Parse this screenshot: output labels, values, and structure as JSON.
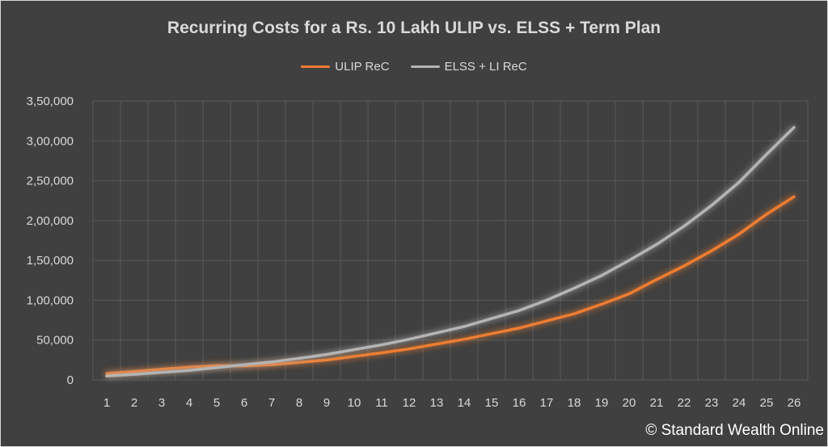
{
  "chart_data": {
    "type": "line",
    "title": "Recurring Costs for a Rs. 10 Lakh ULIP vs. ELSS + Term Plan",
    "xlabel": "",
    "ylabel": "",
    "x": [
      1,
      2,
      3,
      4,
      5,
      6,
      7,
      8,
      9,
      10,
      11,
      12,
      13,
      14,
      15,
      16,
      17,
      18,
      19,
      20,
      21,
      22,
      23,
      24,
      25,
      26
    ],
    "ylim": [
      0,
      350000
    ],
    "yticks": [
      0,
      50000,
      100000,
      150000,
      200000,
      250000,
      300000,
      350000
    ],
    "ytick_labels": [
      "0",
      "50,000",
      "1,00,000",
      "1,50,000",
      "2,00,000",
      "2,50,000",
      "3,00,000",
      "3,50,000"
    ],
    "grid": true,
    "legend_position": "top",
    "series": [
      {
        "name": "ULIP ReC",
        "color": "#ed7d31",
        "values": [
          8000,
          10500,
          13500,
          16000,
          18000,
          17500,
          19000,
          22000,
          25000,
          29500,
          34000,
          39000,
          45000,
          51000,
          58000,
          65000,
          74000,
          83000,
          95000,
          108000,
          126000,
          143000,
          162000,
          183000,
          208000,
          230000
        ]
      },
      {
        "name": "ELSS + LI ReC",
        "color": "#b4b4b4",
        "values": [
          5000,
          7000,
          9500,
          12000,
          15500,
          19000,
          22500,
          27000,
          32000,
          38000,
          44000,
          51000,
          59000,
          67000,
          77000,
          87000,
          100000,
          115000,
          131000,
          150000,
          170000,
          193000,
          219000,
          248000,
          283000,
          317000
        ]
      }
    ]
  },
  "copyright": "© Standard Wealth Online"
}
